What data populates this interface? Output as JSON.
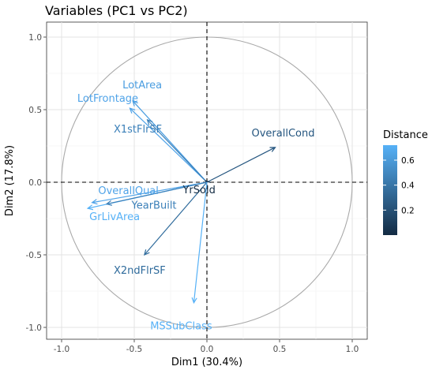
{
  "chart_data": {
    "type": "scatter",
    "title": "Variables (PC1 vs PC2)",
    "xlabel": "Dim1 (30.4%)",
    "ylabel": "Dim2 (17.8%)",
    "xlim": [
      -1.0,
      1.0
    ],
    "ylim": [
      -1.0,
      1.0
    ],
    "x_ticks": [
      "-1.0",
      "-0.5",
      "0.0",
      "0.5",
      "1.0"
    ],
    "y_ticks": [
      "1.0",
      "0.5",
      "0.0",
      "-0.5",
      "-1.0"
    ],
    "grid": true,
    "legend": {
      "title": "Distance",
      "position": "right",
      "ticks": [
        "0.6",
        "0.4",
        "0.2"
      ],
      "color_low": "#132B43",
      "color_high": "#56B1F7"
    },
    "variables": [
      {
        "name": "LotArea",
        "x": -0.51,
        "y": 0.56,
        "distance": 0.64,
        "color": "#4a9de0"
      },
      {
        "name": "LotFrontage",
        "x": -0.53,
        "y": 0.51,
        "distance": 0.66,
        "color": "#4fa3e8"
      },
      {
        "name": "X1stFlrSF",
        "x": -0.41,
        "y": 0.43,
        "distance": 0.51,
        "color": "#3a7fb8"
      },
      {
        "name": "OverallCond",
        "x": 0.47,
        "y": 0.24,
        "distance": 0.28,
        "color": "#24557f"
      },
      {
        "name": "YrSold",
        "x": -0.01,
        "y": 0.01,
        "distance": 0.0,
        "color": "#132B43"
      },
      {
        "name": "OverallQual",
        "x": -0.79,
        "y": -0.14,
        "distance": 0.65,
        "color": "#4fa3e8"
      },
      {
        "name": "GrLivArea",
        "x": -0.82,
        "y": -0.18,
        "distance": 0.7,
        "color": "#56B1F7"
      },
      {
        "name": "YearBuilt",
        "x": -0.69,
        "y": -0.15,
        "distance": 0.5,
        "color": "#3a7fb8"
      },
      {
        "name": "X2ndFlrSF",
        "x": -0.43,
        "y": -0.5,
        "distance": 0.44,
        "color": "#2f6b9c"
      },
      {
        "name": "MSSubClass",
        "x": -0.09,
        "y": -0.83,
        "distance": 0.7,
        "color": "#56B1F7"
      }
    ]
  }
}
